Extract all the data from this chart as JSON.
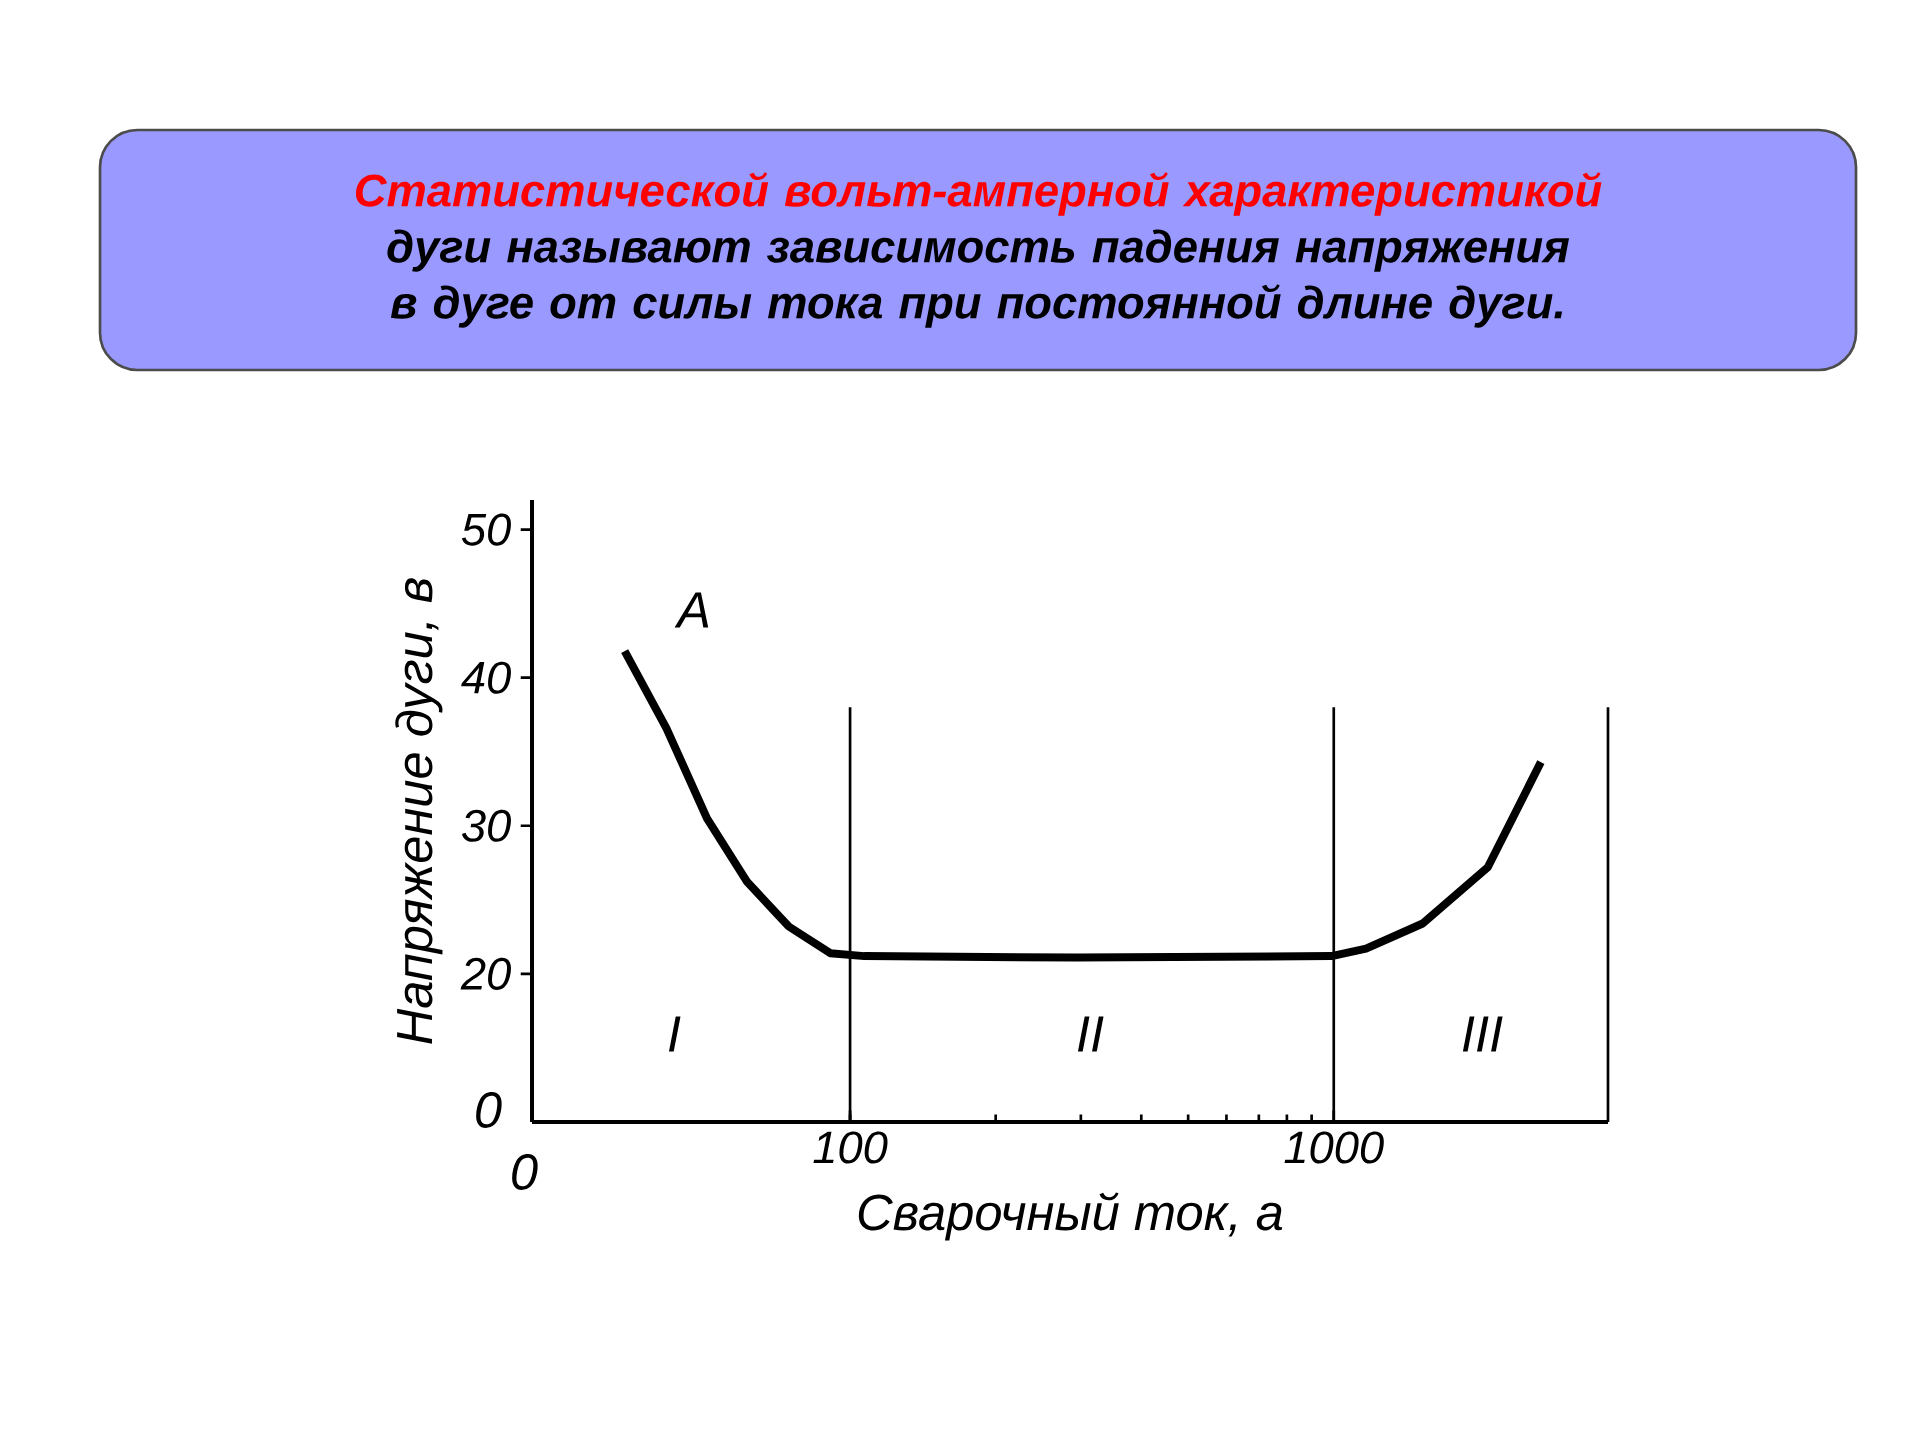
{
  "chart_data": {
    "type": "line",
    "title": "Статистической вольт-амперной характеристикой",
    "subtitle": "дуги называют зависимость падения напряжения в дуге от силы тока при постоянной длине дуги.",
    "xlabel": "Сварочный ток, а",
    "ylabel": "Напряжение дуги, в",
    "log": "x",
    "xlim": [
      22,
      3690
    ],
    "xticks": [
      100,
      1000
    ],
    "ylim": [
      10,
      52
    ],
    "yticks": [
      20,
      30,
      40,
      50
    ],
    "series": [
      {
        "color": "#000000",
        "x": [
          34.2,
          41.7,
          50.6,
          61.3,
          74.7,
          91,
          107,
          295,
          990,
          1166,
          1527,
          2082,
          2680
        ],
        "values": [
          41.8,
          36.6,
          30.5,
          26.2,
          23.2,
          21.4,
          21.2,
          21.1,
          21.2,
          21.7,
          23.4,
          27.2,
          34.3
        ]
      }
    ],
    "ref_lines": [
      {
        "axis": "x",
        "value": 100,
        "color": "#000000"
      },
      {
        "axis": "x",
        "value": 1000,
        "color": "#000000"
      },
      {
        "axis": "x",
        "value": 3690,
        "color": "#000000"
      }
    ],
    "annotations": [
      "A",
      "I",
      "II",
      "III",
      "0",
      "0"
    ],
    "grid": false,
    "marker": "none",
    "line_style": "solid"
  }
}
